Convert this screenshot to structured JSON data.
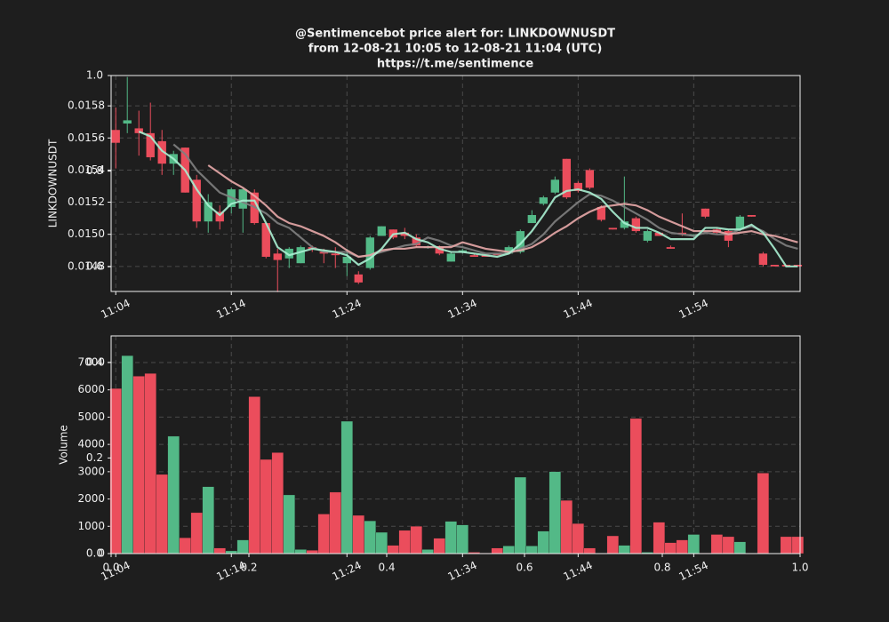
{
  "title": "@Sentimencebot price alert for: LINKDOWNUSDT",
  "subtitle": "from 12-08-21 10:05 to 12-08-21 11:04 (UTC)",
  "link": "https://t.me/sentimence",
  "overlay_axis": {
    "xlim": [
      0,
      1
    ],
    "ylim": [
      0,
      1
    ],
    "xticks": [
      {
        "value": 0,
        "label": "0.0"
      },
      0.2,
      0.4,
      0.6,
      0.8,
      {
        "value": 1,
        "label": "1.0"
      }
    ],
    "yticks": [
      {
        "value": 0,
        "label": "0.0"
      },
      0.2,
      0.4,
      0.6,
      0.8,
      {
        "value": 1,
        "label": "1.0"
      }
    ]
  },
  "chart_data": [
    {
      "type": "candlestick",
      "y_label": "LINKDOWNUSDT",
      "grid": true,
      "up_color": "#53b987",
      "down_color": "#eb4d5c",
      "x": [
        0,
        1,
        2,
        3,
        4,
        5,
        6,
        7,
        8,
        9,
        10,
        11,
        12,
        13,
        14,
        15,
        16,
        17,
        18,
        19,
        20,
        21,
        22,
        23,
        24,
        25,
        26,
        27,
        28,
        29,
        30,
        31,
        32,
        33,
        34,
        35,
        36,
        37,
        38,
        39,
        40,
        41,
        42,
        43,
        44,
        45,
        46,
        47,
        48,
        49,
        50,
        51,
        52,
        53,
        54,
        55,
        56,
        57,
        58,
        59
      ],
      "xlim": [
        -0.4,
        59.2
      ],
      "xticks": [
        {
          "value": 0,
          "label": "11:04"
        },
        {
          "value": 10,
          "label": "11:14"
        },
        {
          "value": 20,
          "label": "11:24"
        },
        {
          "value": 30,
          "label": "11:34"
        },
        {
          "value": 40,
          "label": "11:44"
        },
        {
          "value": 50,
          "label": "11:54"
        }
      ],
      "ylim": [
        0.014644,
        0.015989
      ],
      "yticks": [
        0.0148,
        {
          "value": 0.015,
          "label": "0.0150"
        },
        0.0152,
        0.0154,
        0.0156,
        0.0158
      ],
      "open": [
        0.01565,
        0.01569,
        0.01566,
        0.01563,
        0.01558,
        0.01544,
        0.01554,
        0.01534,
        0.01508,
        0.01514,
        0.01517,
        0.01516,
        0.01526,
        0.01507,
        0.01488,
        0.01485,
        0.01482,
        0.01492,
        0.01489,
        0.01488,
        0.01482,
        0.01475,
        0.01479,
        0.01499,
        0.01503,
        0.01501,
        0.01498,
        0.01492,
        0.01492,
        0.01483,
        0.01489,
        0.01487,
        0.01487,
        0.01488,
        0.01488,
        0.01489,
        0.01507,
        0.01519,
        0.01526,
        0.01547,
        0.01532,
        0.0154,
        0.01517,
        0.01504,
        0.01504,
        0.0151,
        0.01496,
        0.01501,
        0.01492,
        0.01501,
        0.01499,
        0.01516,
        0.01503,
        0.01502,
        0.01503,
        0.01512,
        0.01488,
        0.01481,
        0.01481,
        0.01481
      ],
      "high": [
        0.01579,
        0.01598,
        0.01577,
        0.01582,
        0.01565,
        0.01552,
        0.01554,
        0.01537,
        0.01525,
        0.01518,
        0.01529,
        0.01529,
        0.01528,
        0.01507,
        0.01491,
        0.01492,
        0.01493,
        0.01493,
        0.01491,
        0.01492,
        0.01491,
        0.01477,
        0.01499,
        0.01505,
        0.01503,
        0.01504,
        0.015,
        0.01493,
        0.01493,
        0.01489,
        0.01491,
        0.01488,
        0.01487,
        0.01488,
        0.01493,
        0.01503,
        0.01515,
        0.01524,
        0.01536,
        0.01547,
        0.01533,
        0.01541,
        0.01518,
        0.01504,
        0.01536,
        0.01511,
        0.01503,
        0.01501,
        0.01493,
        0.01513,
        0.015,
        0.01516,
        0.01504,
        0.01503,
        0.01512,
        0.01512,
        0.01489,
        0.01481,
        0.01481,
        0.01481
      ],
      "low": [
        0.01541,
        0.01563,
        0.01549,
        0.01546,
        0.01537,
        0.01537,
        0.01526,
        0.01504,
        0.01501,
        0.01503,
        0.01513,
        0.01501,
        0.01506,
        0.01485,
        0.01464,
        0.01479,
        0.01482,
        0.01489,
        0.01482,
        0.01479,
        0.01474,
        0.01469,
        0.01478,
        0.01499,
        0.01497,
        0.01497,
        0.01492,
        0.01491,
        0.01487,
        0.01483,
        0.01488,
        0.01486,
        0.01486,
        0.01487,
        0.01488,
        0.01488,
        0.01507,
        0.01518,
        0.01525,
        0.01522,
        0.01526,
        0.01528,
        0.01508,
        0.01503,
        0.01503,
        0.01501,
        0.01495,
        0.01499,
        0.01491,
        0.01499,
        0.01498,
        0.0151,
        0.015,
        0.01492,
        0.01502,
        0.01511,
        0.0148,
        0.0148,
        0.0148,
        0.0148
      ],
      "close": [
        0.01557,
        0.01571,
        0.01563,
        0.01548,
        0.01544,
        0.0155,
        0.01526,
        0.01508,
        0.0152,
        0.01508,
        0.01528,
        0.01528,
        0.01507,
        0.01486,
        0.01484,
        0.01491,
        0.01492,
        0.01491,
        0.01488,
        0.01487,
        0.01486,
        0.0147,
        0.01498,
        0.01505,
        0.01498,
        0.01499,
        0.01493,
        0.01492,
        0.01488,
        0.01488,
        0.0149,
        0.01486,
        0.01486,
        0.01487,
        0.01492,
        0.01502,
        0.01512,
        0.01523,
        0.01534,
        0.01523,
        0.01527,
        0.01529,
        0.01509,
        0.01503,
        0.01508,
        0.01502,
        0.01502,
        0.01499,
        0.01491,
        0.015,
        0.015,
        0.01511,
        0.01501,
        0.01496,
        0.01511,
        0.01511,
        0.01481,
        0.0148,
        0.0148,
        0.0148
      ],
      "series": [
        {
          "color": "#7f7f7f",
          "values": [
            null,
            null,
            null,
            null,
            null,
            0.01556,
            0.0155,
            0.0154,
            0.01533,
            0.01526,
            0.01523,
            0.0152,
            0.01517,
            0.01513,
            0.01507,
            0.01504,
            0.01498,
            0.01492,
            0.01489,
            0.01489,
            0.01489,
            0.01486,
            0.01487,
            0.01489,
            0.01491,
            0.01493,
            0.01494,
            0.01498,
            0.01496,
            0.01493,
            0.01492,
            0.0149,
            0.01488,
            0.01488,
            0.01488,
            0.01491,
            0.01494,
            0.015,
            0.01508,
            0.01514,
            0.0152,
            0.01525,
            0.01524,
            0.01521,
            0.01517,
            0.01513,
            0.01509,
            0.01504,
            0.01501,
            0.015,
            0.01499,
            0.01501,
            0.015,
            0.015,
            0.01503,
            0.01505,
            0.01502,
            0.01497,
            0.01493,
            0.01491
          ]
        },
        {
          "color": "#e8a9a9",
          "values": [
            null,
            null,
            null,
            null,
            null,
            null,
            null,
            null,
            0.01543,
            0.01538,
            0.01533,
            0.01529,
            0.01524,
            0.01518,
            0.01511,
            0.01507,
            0.01505,
            0.01502,
            0.01499,
            0.01495,
            0.0149,
            0.01486,
            0.01487,
            0.0149,
            0.01491,
            0.01491,
            0.01492,
            0.01492,
            0.01492,
            0.01492,
            0.01495,
            0.01493,
            0.01491,
            0.0149,
            0.01489,
            0.0149,
            0.01492,
            0.01496,
            0.01501,
            0.01505,
            0.0151,
            0.01514,
            0.01517,
            0.01518,
            0.01519,
            0.01518,
            0.01515,
            0.01511,
            0.01508,
            0.01505,
            0.01502,
            0.01502,
            0.01502,
            0.015,
            0.01501,
            0.01502,
            0.015,
            0.01499,
            0.01497,
            0.01495
          ]
        },
        {
          "color": "#a9f0d1",
          "values": [
            null,
            null,
            0.01564,
            0.01561,
            0.01552,
            0.01547,
            0.0154,
            0.01528,
            0.01518,
            0.01512,
            0.01519,
            0.01521,
            0.01521,
            0.01507,
            0.01492,
            0.01487,
            0.01489,
            0.01491,
            0.0149,
            0.01489,
            0.01487,
            0.01481,
            0.01485,
            0.01491,
            0.015,
            0.01501,
            0.01497,
            0.01495,
            0.01491,
            0.01489,
            0.01489,
            0.01488,
            0.01487,
            0.01486,
            0.01488,
            0.01494,
            0.01502,
            0.01512,
            0.01523,
            0.01527,
            0.01528,
            0.01526,
            0.01522,
            0.01514,
            0.01507,
            0.01504,
            0.01504,
            0.01501,
            0.01497,
            0.01497,
            0.01497,
            0.01504,
            0.01504,
            0.01503,
            0.01503,
            0.01506,
            0.01501,
            0.01491,
            0.0148,
            0.0148
          ]
        }
      ]
    },
    {
      "type": "bar",
      "y_label": "Volume",
      "grid": true,
      "xlim": [
        -0.4,
        59.2
      ],
      "xticks": [
        {
          "value": 0,
          "label": "11:04"
        },
        {
          "value": 10,
          "label": "11:14"
        },
        {
          "value": 20,
          "label": "11:24"
        },
        {
          "value": 30,
          "label": "11:34"
        },
        {
          "value": 40,
          "label": "11:44"
        },
        {
          "value": 50,
          "label": "11:54"
        }
      ],
      "ylim": [
        0,
        7977
      ],
      "yticks": [
        0,
        1000,
        2000,
        3000,
        4000,
        5000,
        6000,
        7000
      ],
      "values": [
        6050,
        7250,
        6500,
        6600,
        2900,
        4300,
        580,
        1500,
        2450,
        200,
        100,
        500,
        5750,
        3450,
        3700,
        2150,
        150,
        120,
        1450,
        2250,
        4850,
        1400,
        1200,
        780,
        300,
        850,
        1000,
        150,
        560,
        1180,
        1050,
        50,
        20,
        200,
        280,
        2800,
        280,
        820,
        3000,
        1950,
        1100,
        200,
        10,
        650,
        300,
        4950,
        50,
        1150,
        400,
        500,
        700,
        20,
        700,
        620,
        430,
        10,
        2950,
        10,
        620,
        620
      ]
    }
  ]
}
